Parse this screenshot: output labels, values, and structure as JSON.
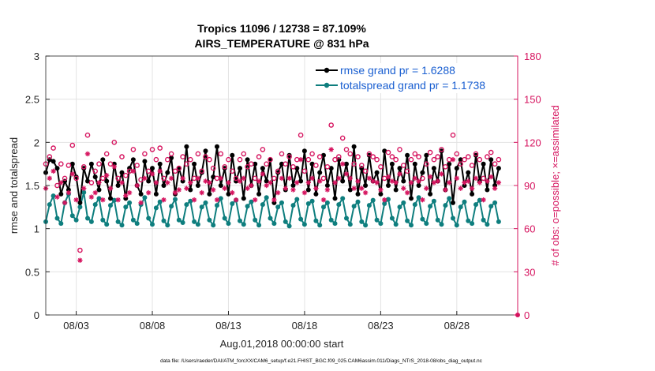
{
  "chart_data": {
    "type": "line",
    "title_line1": "Tropics 11096 / 12738 = 87.109%",
    "title_line2": "AIRS_TEMPERATURE @ 831 hPa",
    "xlabel": "Aug.01,2018 00:00:00 start",
    "ylabel_left": "rmse and totalspread",
    "ylabel_right": "# of obs: o=possible; ×=assimilated",
    "x_range_days": [
      1.0,
      32.0
    ],
    "ylim_left": [
      0,
      3
    ],
    "ylim_right": [
      0,
      180
    ],
    "x_ticks": [
      {
        "day": 3,
        "label": "08/03"
      },
      {
        "day": 8,
        "label": "08/08"
      },
      {
        "day": 13,
        "label": "08/13"
      },
      {
        "day": 18,
        "label": "08/18"
      },
      {
        "day": 23,
        "label": "08/23"
      },
      {
        "day": 28,
        "label": "08/28"
      }
    ],
    "y_ticks_left": [
      {
        "value": 0,
        "label": "0"
      },
      {
        "value": 0.5,
        "label": "0.5"
      },
      {
        "value": 1,
        "label": "1"
      },
      {
        "value": 1.5,
        "label": "1.5"
      },
      {
        "value": 2,
        "label": "2"
      },
      {
        "value": 2.5,
        "label": "2.5"
      },
      {
        "value": 3,
        "label": "3"
      }
    ],
    "y_ticks_right": [
      {
        "value": 0,
        "label": "0"
      },
      {
        "value": 30,
        "label": "30"
      },
      {
        "value": 60,
        "label": "60"
      },
      {
        "value": 90,
        "label": "90"
      },
      {
        "value": 120,
        "label": "120"
      },
      {
        "value": 150,
        "label": "150"
      },
      {
        "value": 180,
        "label": "180"
      }
    ],
    "grid": true,
    "legend_position": "top-right",
    "series": [
      {
        "name": "rmse grand pr = 1.6288",
        "color": "#000000",
        "marker": "dot",
        "x_start": 1.0,
        "x_step": 0.25,
        "values": [
          1.65,
          1.8,
          1.78,
          1.7,
          1.4,
          1.55,
          1.45,
          1.75,
          1.6,
          1.3,
          1.7,
          1.55,
          1.75,
          1.6,
          1.45,
          1.8,
          1.55,
          1.35,
          1.75,
          1.5,
          1.65,
          1.35,
          1.7,
          1.8,
          1.5,
          1.4,
          1.78,
          1.55,
          1.7,
          1.4,
          1.75,
          1.5,
          1.65,
          1.82,
          1.4,
          1.7,
          1.55,
          1.95,
          1.45,
          1.75,
          1.5,
          1.65,
          1.9,
          1.4,
          1.6,
          1.95,
          1.5,
          1.7,
          1.4,
          1.85,
          1.55,
          1.7,
          1.35,
          1.8,
          1.5,
          1.75,
          1.4,
          1.7,
          1.55,
          1.8,
          1.3,
          1.65,
          1.75,
          1.45,
          1.85,
          1.5,
          1.7,
          1.55,
          1.9,
          1.45,
          1.75,
          1.4,
          1.65,
          1.85,
          1.5,
          1.7,
          1.35,
          1.8,
          1.55,
          1.75,
          1.45,
          1.95,
          1.4,
          1.7,
          1.5,
          1.85,
          1.55,
          1.65,
          1.4,
          1.9,
          1.5,
          1.75,
          1.45,
          1.7,
          1.55,
          1.85,
          1.35,
          1.75,
          1.5,
          1.65,
          1.85,
          1.4,
          1.7,
          1.55,
          1.9,
          1.45,
          1.75,
          1.3,
          1.7,
          1.8,
          1.5,
          1.65,
          1.4,
          1.85,
          1.55,
          1.75,
          1.45,
          1.8,
          1.5,
          1.7
        ]
      },
      {
        "name": "totalspread grand pr = 1.1738",
        "color": "#0e7e7e",
        "marker": "dot",
        "x_start": 1.0,
        "x_step": 0.25,
        "values": [
          1.08,
          1.28,
          1.38,
          1.12,
          1.06,
          1.3,
          1.4,
          1.15,
          1.1,
          1.25,
          1.42,
          1.12,
          1.08,
          1.28,
          1.35,
          1.1,
          1.05,
          1.27,
          1.33,
          1.08,
          1.04,
          1.25,
          1.3,
          1.1,
          1.06,
          1.28,
          1.36,
          1.12,
          1.05,
          1.24,
          1.31,
          1.09,
          1.04,
          1.26,
          1.34,
          1.1,
          1.07,
          1.28,
          1.32,
          1.08,
          1.05,
          1.25,
          1.3,
          1.1,
          1.04,
          1.27,
          1.35,
          1.12,
          1.06,
          1.29,
          1.33,
          1.09,
          1.05,
          1.26,
          1.31,
          1.1,
          1.04,
          1.28,
          1.36,
          1.12,
          1.06,
          1.25,
          1.3,
          1.08,
          1.03,
          1.27,
          1.34,
          1.11,
          1.05,
          1.29,
          1.32,
          1.09,
          1.04,
          1.25,
          1.3,
          1.1,
          1.06,
          1.28,
          1.35,
          1.12,
          1.05,
          1.26,
          1.31,
          1.08,
          1.04,
          1.27,
          1.33,
          1.1,
          1.06,
          1.29,
          1.34,
          1.12,
          1.05,
          1.25,
          1.3,
          1.09,
          1.04,
          1.28,
          1.36,
          1.11,
          1.06,
          1.26,
          1.32,
          1.1,
          1.05,
          1.27,
          1.35,
          1.12,
          1.04,
          1.25,
          1.31,
          1.09,
          1.06,
          1.28,
          1.33,
          1.1,
          1.05,
          1.26,
          1.3,
          1.08
        ]
      }
    ],
    "obs_possible": {
      "name": "possible",
      "color": "#d6145f",
      "marker": "circle",
      "x_start": 1.0,
      "x_step": 0.25,
      "values": [
        105,
        110,
        116,
        90,
        105,
        95,
        104,
        118,
        95,
        45,
        103,
        125,
        92,
        100,
        105,
        95,
        112,
        105,
        120,
        95,
        110,
        97,
        100,
        115,
        104,
        94,
        112,
        100,
        115,
        108,
        116,
        95,
        108,
        112,
        100,
        102,
        110,
        105,
        108,
        95,
        112,
        100,
        110,
        108,
        102,
        95,
        112,
        103,
        108,
        100,
        95,
        108,
        112,
        103,
        105,
        95,
        110,
        115,
        105,
        108,
        95,
        100,
        112,
        105,
        110,
        103,
        108,
        125,
        100,
        108,
        112,
        104,
        110,
        95,
        103,
        132,
        108,
        110,
        123,
        115,
        112,
        105,
        110,
        104,
        100,
        112,
        110,
        108,
        103,
        95,
        113,
        110,
        108,
        115,
        104,
        100,
        108,
        112,
        110,
        95,
        105,
        113,
        108,
        110,
        115,
        103,
        108,
        125,
        112,
        105,
        108,
        110,
        104,
        112,
        108,
        95,
        110,
        113,
        105,
        108
      ]
    },
    "obs_assimilated": {
      "name": "assimilated",
      "color": "#d6145f",
      "marker": "asterisk",
      "x_start": 1.0,
      "x_step": 0.25,
      "values": [
        88,
        95,
        100,
        82,
        92,
        78,
        85,
        98,
        80,
        38,
        88,
        112,
        82,
        85,
        92,
        80,
        97,
        88,
        103,
        80,
        92,
        83,
        85,
        100,
        90,
        78,
        95,
        85,
        98,
        92,
        100,
        80,
        92,
        95,
        85,
        87,
        95,
        88,
        92,
        80,
        95,
        85,
        93,
        92,
        87,
        80,
        95,
        88,
        92,
        85,
        80,
        93,
        95,
        88,
        90,
        80,
        93,
        98,
        90,
        92,
        80,
        85,
        95,
        88,
        95,
        87,
        92,
        108,
        85,
        92,
        95,
        88,
        93,
        80,
        87,
        115,
        92,
        95,
        105,
        98,
        95,
        88,
        93,
        88,
        85,
        95,
        93,
        92,
        87,
        80,
        96,
        93,
        92,
        98,
        88,
        85,
        92,
        95,
        93,
        80,
        88,
        96,
        92,
        93,
        98,
        87,
        92,
        108,
        95,
        88,
        92,
        93,
        88,
        95,
        92,
        80,
        93,
        96,
        88,
        92
      ]
    },
    "footer": "data file: /Users/raeder/DAI/ATM_forcXX/CAM6_setup/f.e21.FHIST_BGC.f09_025.CAM6assim.011/Diags_NTrS_2018-08/obs_diag_output.nc"
  }
}
